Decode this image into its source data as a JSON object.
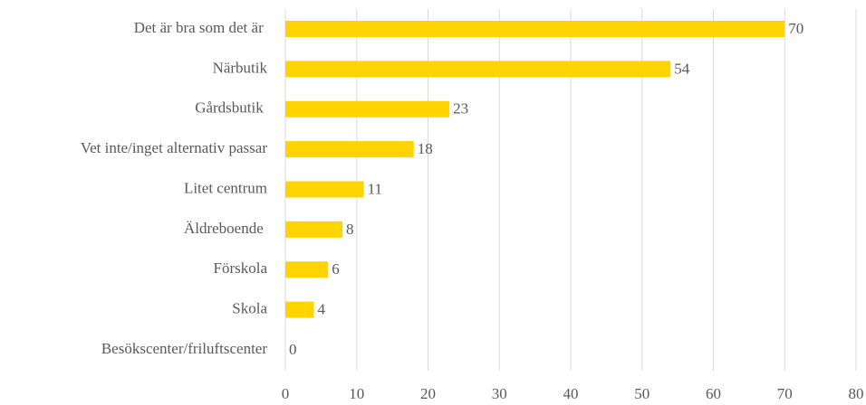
{
  "chart_data": {
    "type": "bar",
    "orientation": "horizontal",
    "categories": [
      "Det är bra som det är ",
      "Närbutik",
      "Gårdsbutik ",
      "Vet inte/inget alternativ passar",
      "Litet centrum",
      "Äldreboende ",
      "Förskola",
      "Skola",
      "Besökscenter/friluftscenter"
    ],
    "values": [
      70,
      54,
      23,
      18,
      11,
      8,
      6,
      4,
      0
    ],
    "color": "#ffd400",
    "xlim": [
      0,
      80
    ],
    "xticks": [
      0,
      10,
      20,
      30,
      40,
      50,
      60,
      70,
      80
    ],
    "grid": true
  }
}
